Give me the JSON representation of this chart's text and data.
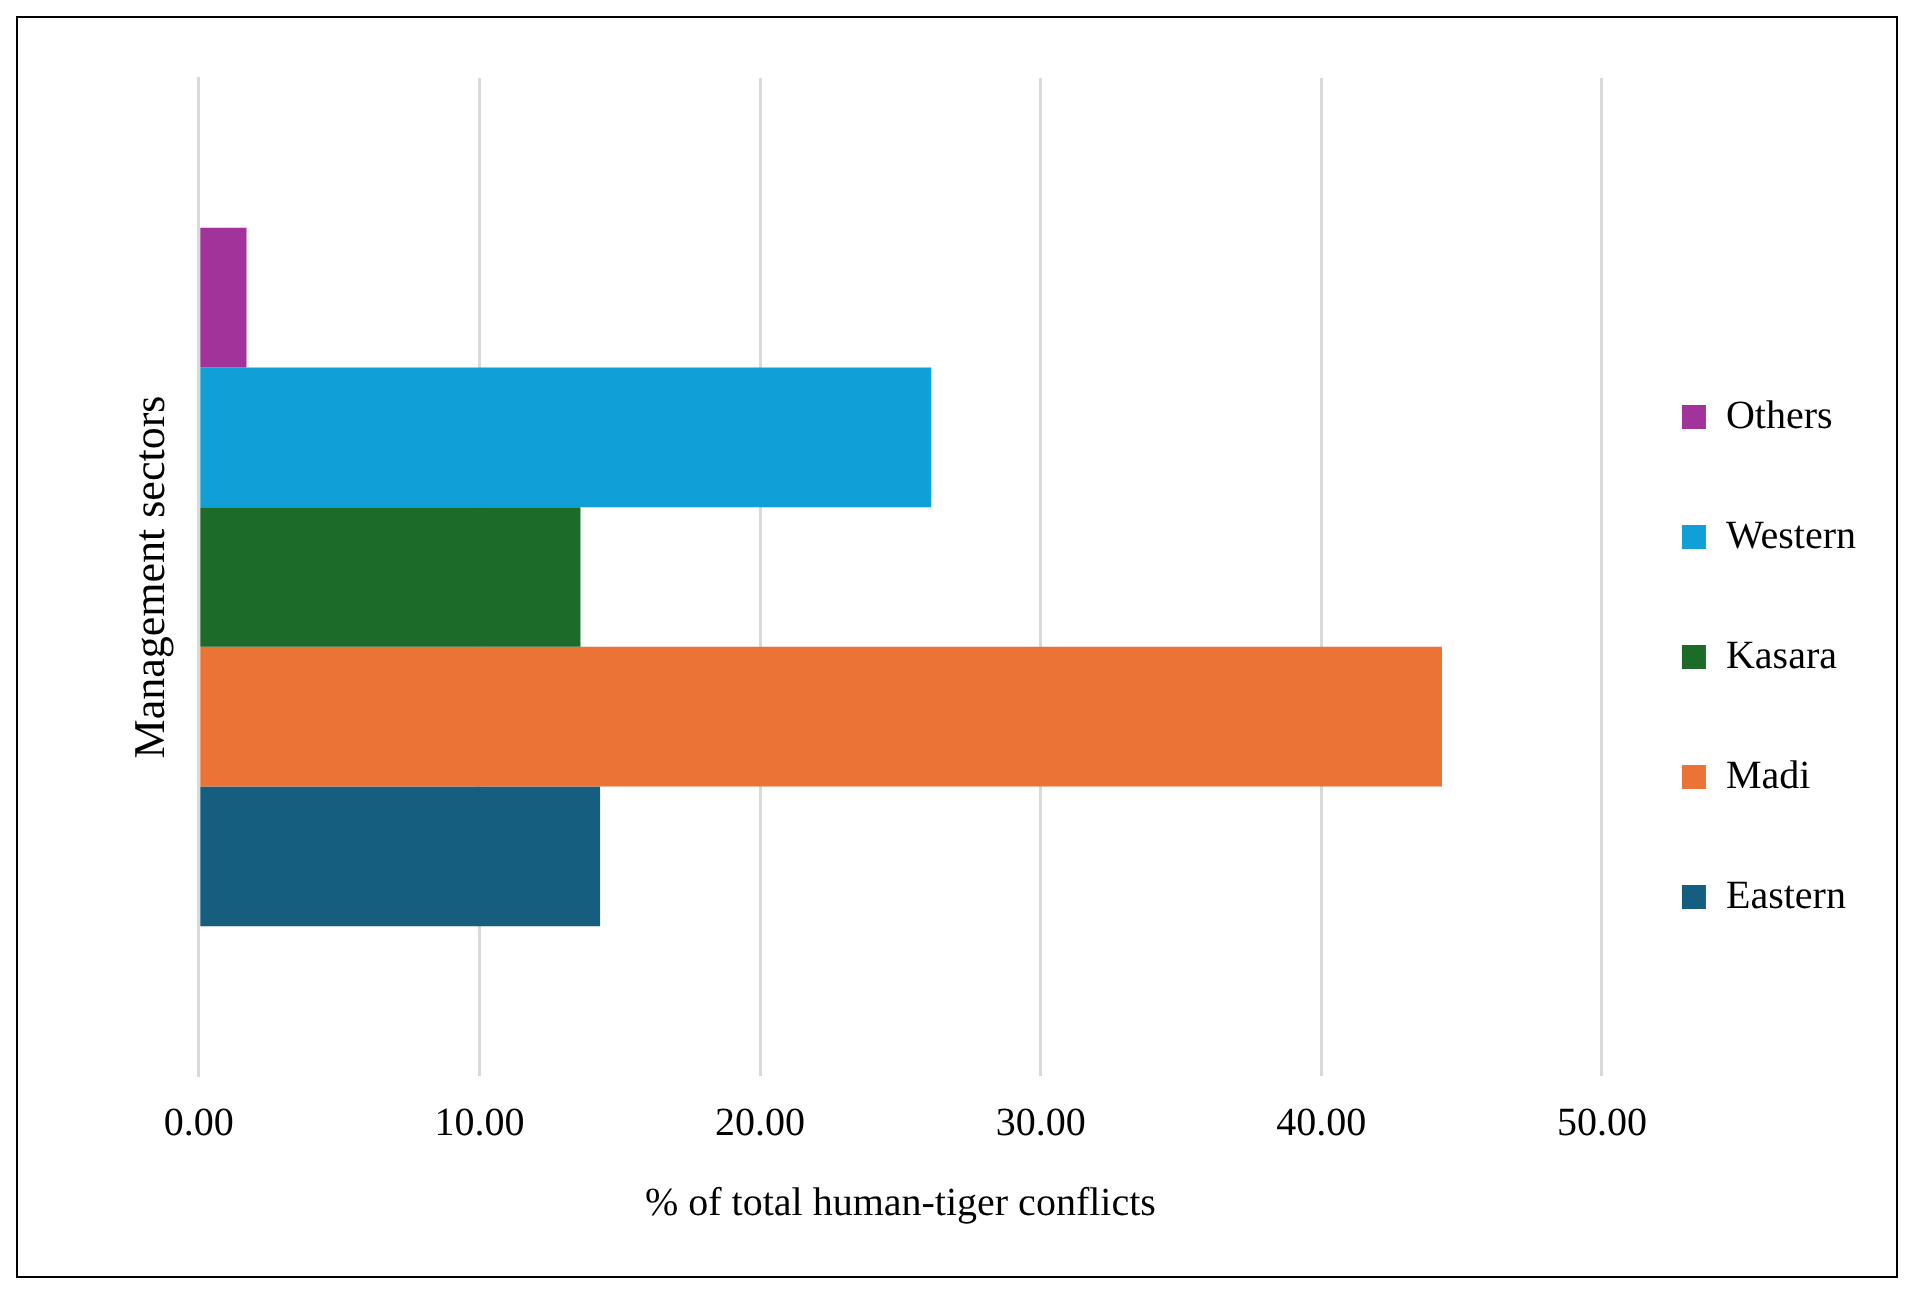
{
  "chart_data": {
    "type": "bar",
    "orientation": "horizontal",
    "xlabel": "% of total human-tiger conflicts",
    "ylabel": "Management sectors",
    "categories": [
      null
    ],
    "series": [
      {
        "name": "Others",
        "color": "#a2339b",
        "values": [
          1.7
        ]
      },
      {
        "name": "Western",
        "color": "#119fd7",
        "values": [
          26.1
        ]
      },
      {
        "name": "Kasara",
        "color": "#1c6b28",
        "values": [
          13.6
        ]
      },
      {
        "name": "Madi",
        "color": "#ea7335",
        "values": [
          44.3
        ]
      },
      {
        "name": "Eastern",
        "color": "#155e7f",
        "values": [
          14.3
        ]
      }
    ],
    "xlim": [
      0,
      50
    ],
    "xticks": [
      {
        "value": 0,
        "label": "0.00"
      },
      {
        "value": 10,
        "label": "10.00"
      },
      {
        "value": 20,
        "label": "20.00"
      },
      {
        "value": 30,
        "label": "30.00"
      },
      {
        "value": 40,
        "label": "40.00"
      },
      {
        "value": 50,
        "label": "50.00"
      }
    ],
    "grid": "x",
    "legend": "right"
  }
}
